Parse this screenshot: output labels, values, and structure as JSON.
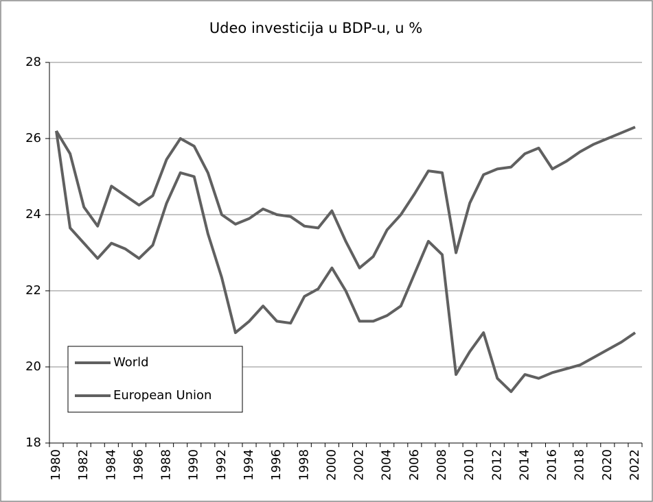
{
  "chart_data": {
    "type": "line",
    "title": "Udeo investicija u BDP-u, u %",
    "categories": [
      "1980",
      null,
      "1982",
      null,
      "1984",
      null,
      "1986",
      null,
      "1988",
      null,
      "1990",
      null,
      "1992",
      null,
      "1994",
      null,
      "1996",
      null,
      "1998",
      null,
      "2000",
      null,
      "2002",
      null,
      "2004",
      null,
      "2006",
      null,
      "2008",
      null,
      "2010",
      null,
      "2012",
      null,
      "2014",
      null,
      "2016",
      null,
      "2018",
      null,
      "2020",
      null,
      "2022"
    ],
    "series": [
      {
        "name": "World",
        "color": "#606060",
        "values": [
          26.2,
          25.6,
          24.2,
          23.7,
          24.75,
          24.5,
          24.25,
          24.5,
          25.45,
          26.0,
          25.8,
          25.1,
          24.0,
          23.75,
          23.9,
          24.15,
          24.0,
          23.95,
          23.7,
          23.65,
          24.1,
          23.3,
          22.6,
          22.9,
          23.6,
          24.0,
          24.55,
          25.15,
          25.1,
          23.0,
          24.3,
          25.05,
          25.2,
          25.25,
          25.6,
          25.75,
          25.2,
          25.4,
          25.65,
          25.85,
          26.0,
          26.15,
          26.3
        ]
      },
      {
        "name": "European Union",
        "color": "#606060",
        "values": [
          26.2,
          23.65,
          23.25,
          22.85,
          23.25,
          23.1,
          22.85,
          23.2,
          24.3,
          25.1,
          25.0,
          23.5,
          22.35,
          20.9,
          21.2,
          21.6,
          21.2,
          21.15,
          21.85,
          22.05,
          22.6,
          22.0,
          21.2,
          21.2,
          21.35,
          21.6,
          22.45,
          23.3,
          22.95,
          19.8,
          20.4,
          20.9,
          19.7,
          19.35,
          19.8,
          19.7,
          19.85,
          19.95,
          20.05,
          20.25,
          20.45,
          20.65,
          20.9
        ]
      }
    ],
    "ylim": [
      18,
      28
    ],
    "yticks": [
      18,
      20,
      22,
      24,
      26,
      28
    ],
    "grid": true,
    "legend": "lower left"
  }
}
